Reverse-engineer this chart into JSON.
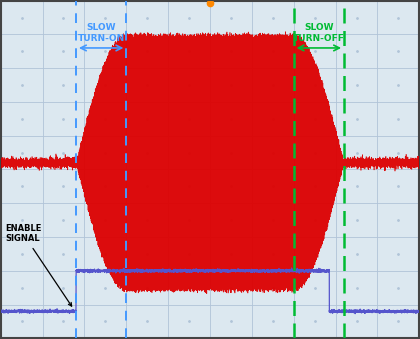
{
  "bg_color": "#dce8f0",
  "grid_color": "#b0c4d8",
  "border_color": "#444444",
  "fig_width": 4.2,
  "fig_height": 3.39,
  "dpi": 100,
  "xlim": [
    0,
    10
  ],
  "ylim": [
    0,
    10
  ],
  "blue_line1_x": 1.8,
  "blue_line2_x": 3.0,
  "green_line1_x": 7.0,
  "green_line2_x": 8.2,
  "dot_marker_x": 5.0,
  "slow_turnon_label": "SLOW\nTURN-ON",
  "slow_turnoff_label": "SLOW\nTURN-OFF",
  "enable_label": "ENABLE\nSIGNAL",
  "osc_color": "#dd0000",
  "enable_color": "#5555cc",
  "blue_vline_color": "#4499ff",
  "green_vline_color": "#00bb33",
  "annotation_color_blue": "#4499ff",
  "annotation_color_green": "#00bb33",
  "envelope_ramp_start": 1.8,
  "envelope_full_start": 3.0,
  "envelope_full_end": 7.0,
  "envelope_ramp_end": 8.2,
  "envelope_peak": 3.8,
  "osc_baseline": 5.2,
  "osc_freq": 55,
  "enable_low_y": 0.8,
  "enable_high_y": 2.0,
  "enable_step_x1": 1.8,
  "enable_step_x2": 7.85,
  "noise_amplitude": 0.03
}
